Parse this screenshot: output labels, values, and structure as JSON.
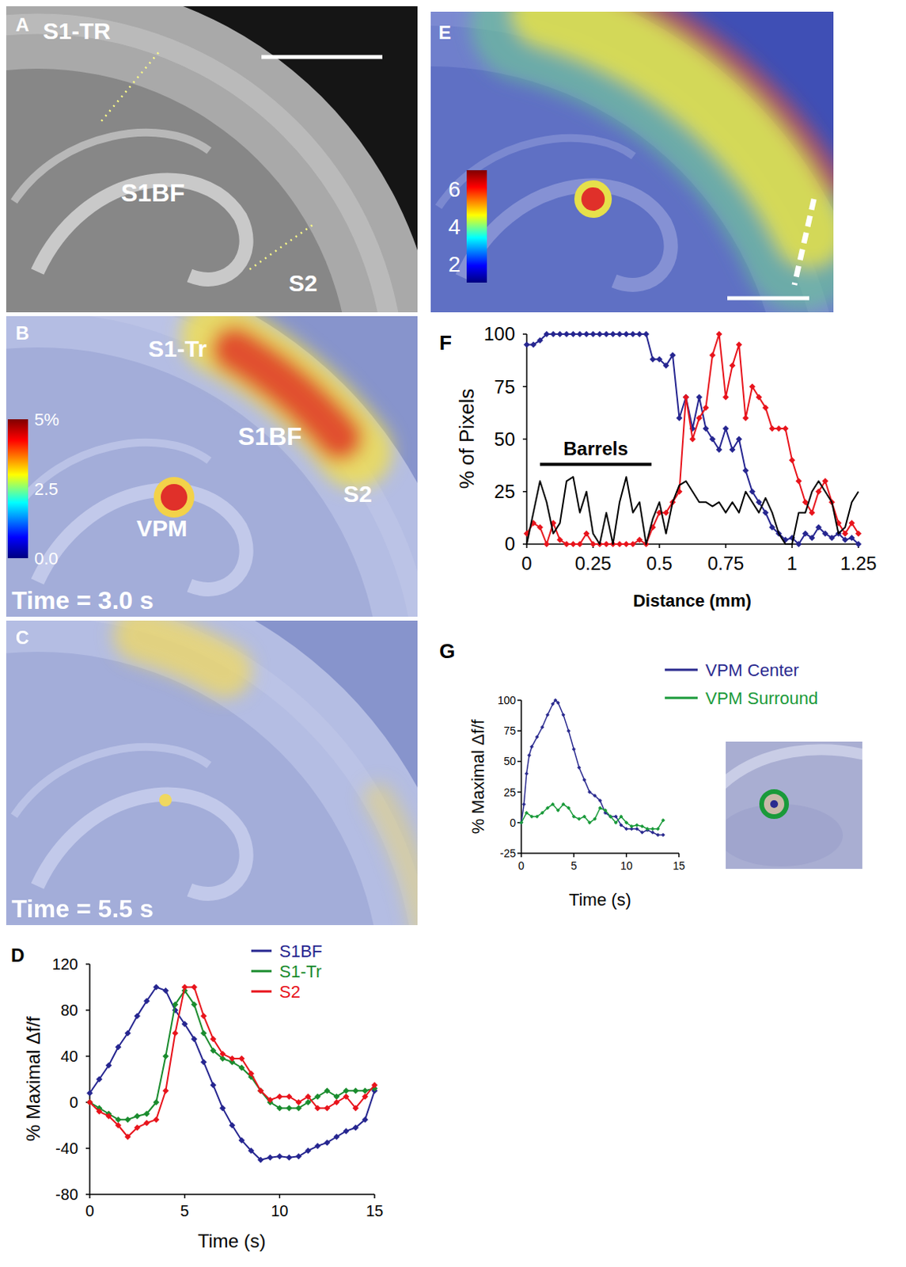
{
  "chart_data": [
    {
      "type": "image",
      "label": "A",
      "annotations": [
        "S1-TR",
        "S1BF",
        "S2"
      ]
    },
    {
      "type": "image",
      "label": "B",
      "annotations": [
        "S1-Tr",
        "S1BF",
        "S2",
        "VPM",
        "Time = 3.0 s"
      ],
      "colorbar": {
        "range": [
          0,
          5
        ],
        "ticks": [
          {
            "value": 5,
            "label": "5%"
          },
          2.5,
          {
            "value": 0,
            "label": "0.0"
          }
        ]
      }
    },
    {
      "type": "image",
      "label": "C",
      "annotations": [
        "Time = 5.5 s"
      ]
    },
    {
      "type": "line",
      "label": "D",
      "x_label": "Time (s)",
      "y_label": "% Maximal Δf/f",
      "xlim": [
        0,
        15
      ],
      "xticks": [
        0,
        5,
        10,
        15
      ],
      "ylim": [
        -80,
        120
      ],
      "yticks": [
        -80,
        -40,
        0,
        40,
        80,
        120
      ],
      "legend": "upper right",
      "x": [
        0,
        0.5,
        1,
        1.5,
        2,
        2.5,
        3,
        3.5,
        4,
        4.5,
        5,
        5.5,
        6,
        6.5,
        7,
        7.5,
        8,
        8.5,
        9,
        9.5,
        10,
        10.5,
        11,
        11.5,
        12,
        12.5,
        13,
        13.5,
        14,
        14.5,
        15
      ],
      "series": [
        {
          "name": "S1BF",
          "color": "#262690",
          "marker": "diamond",
          "values": [
            8,
            20,
            32,
            48,
            60,
            75,
            88,
            100,
            97,
            80,
            68,
            55,
            35,
            15,
            -5,
            -20,
            -33,
            -42,
            -50,
            -48,
            -47,
            -48,
            -47,
            -42,
            -38,
            -35,
            -30,
            -25,
            -22,
            -15,
            10
          ]
        },
        {
          "name": "S1-Tr",
          "color": "#1a8c2e",
          "marker": "diamond",
          "values": [
            0,
            -5,
            -10,
            -15,
            -15,
            -12,
            -10,
            0,
            40,
            85,
            97,
            85,
            60,
            45,
            38,
            35,
            30,
            22,
            10,
            0,
            -5,
            -5,
            -5,
            0,
            5,
            10,
            5,
            10,
            10,
            10,
            12
          ]
        },
        {
          "name": "S2",
          "color": "#e8141c",
          "marker": "diamond",
          "values": [
            0,
            -8,
            -12,
            -20,
            -30,
            -22,
            -18,
            -15,
            10,
            60,
            100,
            100,
            75,
            55,
            42,
            38,
            38,
            25,
            10,
            2,
            5,
            5,
            0,
            5,
            -5,
            -5,
            0,
            5,
            -5,
            5,
            15
          ]
        }
      ]
    },
    {
      "type": "image",
      "label": "E",
      "colorbar": {
        "range": [
          1,
          7
        ],
        "ticks": [
          6,
          4,
          2
        ]
      }
    },
    {
      "type": "line",
      "label": "F",
      "x_label": "Distance (mm)",
      "y_label": "% of Pixels",
      "xlim": [
        0,
        1.25
      ],
      "xticks": [
        0,
        0.25,
        0.5,
        0.75,
        1,
        1.25
      ],
      "ylim": [
        0,
        100
      ],
      "yticks": [
        0,
        25,
        50,
        75,
        100
      ],
      "x": [
        0,
        0.025,
        0.05,
        0.075,
        0.1,
        0.125,
        0.15,
        0.175,
        0.2,
        0.225,
        0.25,
        0.275,
        0.3,
        0.325,
        0.35,
        0.375,
        0.4,
        0.425,
        0.45,
        0.475,
        0.5,
        0.525,
        0.55,
        0.575,
        0.6,
        0.625,
        0.65,
        0.675,
        0.7,
        0.725,
        0.75,
        0.775,
        0.8,
        0.825,
        0.85,
        0.875,
        0.9,
        0.925,
        0.95,
        0.975,
        1,
        1.025,
        1.05,
        1.075,
        1.1,
        1.125,
        1.15,
        1.175,
        1.2,
        1.225,
        1.25
      ],
      "series": [
        {
          "color": "#262690",
          "marker": "diamond",
          "values": [
            95,
            95,
            97,
            100,
            100,
            100,
            100,
            100,
            100,
            100,
            100,
            100,
            100,
            100,
            100,
            100,
            100,
            100,
            100,
            88,
            88,
            85,
            90,
            60,
            70,
            55,
            70,
            55,
            50,
            45,
            55,
            45,
            50,
            35,
            25,
            20,
            15,
            8,
            5,
            2,
            3,
            0,
            5,
            3,
            8,
            5,
            3,
            5,
            2,
            3,
            0
          ]
        },
        {
          "color": "#e8141c",
          "marker": "diamond",
          "values": [
            5,
            10,
            8,
            0,
            10,
            2,
            0,
            0,
            0,
            5,
            0,
            0,
            0,
            0,
            0,
            0,
            0,
            2,
            0,
            8,
            15,
            15,
            20,
            25,
            70,
            50,
            60,
            65,
            90,
            100,
            70,
            85,
            95,
            60,
            75,
            70,
            65,
            55,
            55,
            55,
            40,
            30,
            20,
            15,
            25,
            30,
            20,
            10,
            5,
            10,
            5
          ]
        },
        {
          "color": "#000000",
          "marker": "none",
          "values": [
            0,
            15,
            30,
            20,
            5,
            10,
            30,
            32,
            15,
            25,
            5,
            0,
            15,
            0,
            20,
            32,
            15,
            20,
            0,
            12,
            20,
            5,
            20,
            28,
            30,
            25,
            20,
            20,
            18,
            20,
            15,
            20,
            15,
            25,
            20,
            15,
            22,
            15,
            5,
            0,
            0,
            15,
            15,
            25,
            30,
            25,
            20,
            5,
            8,
            20,
            25
          ]
        }
      ],
      "annotations": [
        {
          "text": "Barrels",
          "x": [
            0.05,
            0.47
          ],
          "y": 38
        }
      ]
    },
    {
      "type": "line",
      "label": "G",
      "x_label": "Time (s)",
      "y_label": "% Maximal Δf/f",
      "xlim": [
        0,
        15
      ],
      "xticks": [
        0,
        5,
        10,
        15
      ],
      "ylim": [
        -25,
        100
      ],
      "yticks": [
        -25,
        0,
        25,
        50,
        75,
        100
      ],
      "legend": "right",
      "series": [
        {
          "name": "VPM Center",
          "color": "#2b2b8f",
          "marker": "diamond",
          "x": [
            0,
            0.25,
            0.5,
            0.75,
            1,
            1.5,
            2,
            2.5,
            3,
            3.25,
            3.5,
            4,
            4.5,
            5,
            5.5,
            6,
            6.5,
            7,
            7.5,
            8,
            8.5,
            9,
            9.5,
            10,
            10.5,
            11,
            11.5,
            12,
            12.5,
            13,
            13.5
          ],
          "values": [
            0,
            15,
            40,
            55,
            62,
            70,
            78,
            88,
            97,
            100,
            98,
            88,
            75,
            60,
            45,
            35,
            25,
            22,
            18,
            8,
            5,
            5,
            -2,
            -5,
            -5,
            -5,
            -8,
            -6,
            -8,
            -10,
            -10
          ]
        },
        {
          "name": "VPM Surround",
          "color": "#1a9a3a",
          "marker": "diamond",
          "x": [
            0,
            0.5,
            1,
            1.5,
            2,
            2.5,
            3,
            3.5,
            4,
            4.5,
            5,
            5.5,
            6,
            6.5,
            7,
            7.5,
            8,
            8.5,
            9,
            9.5,
            10,
            10.5,
            11,
            11.5,
            12,
            12.5,
            13,
            13.5
          ],
          "values": [
            0,
            8,
            5,
            5,
            8,
            12,
            15,
            10,
            15,
            12,
            5,
            3,
            5,
            0,
            3,
            12,
            10,
            5,
            0,
            5,
            0,
            -3,
            -2,
            -3,
            -5,
            -5,
            -5,
            2
          ]
        }
      ]
    }
  ]
}
